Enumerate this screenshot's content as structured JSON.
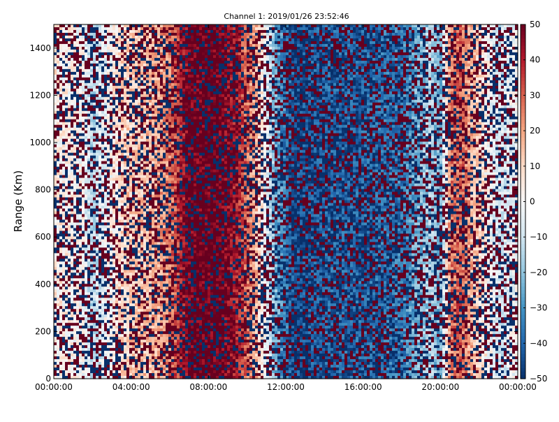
{
  "chart_data": {
    "type": "heatmap",
    "title": "Channel 1: 2019/01/26 23:52:46",
    "xlabel": "",
    "ylabel": "Range (Km)",
    "x_tick_labels": [
      "00:00:00",
      "04:00:00",
      "08:00:00",
      "12:00:00",
      "16:00:00",
      "20:00:00",
      "00:00:00"
    ],
    "x_range_hours": [
      0,
      24
    ],
    "y_ticks": [
      0,
      200,
      400,
      600,
      800,
      1000,
      1200,
      1400
    ],
    "y_range": [
      0,
      1500
    ],
    "colorbar": {
      "ticks": [
        50,
        40,
        30,
        20,
        10,
        0,
        -10,
        -20,
        -30,
        -40,
        -50
      ],
      "range": [
        -50,
        50
      ],
      "colormap": "diverging red-white-blue",
      "colors": {
        "low": "#08306b",
        "mid": "#f7f7f7",
        "high": "#67001f"
      }
    },
    "grid": false,
    "background_value_profile": {
      "x_hours": [
        0,
        1.5,
        2,
        2.5,
        3.5,
        4,
        5,
        6,
        7,
        8.5,
        9.5,
        10.5,
        11.5,
        12.5,
        14,
        16,
        18,
        19.5,
        20,
        20.5,
        21,
        22,
        23,
        24
      ],
      "values": [
        5,
        0,
        -15,
        -5,
        10,
        12,
        15,
        25,
        48,
        50,
        40,
        15,
        -25,
        -45,
        -40,
        -40,
        -35,
        -15,
        -25,
        25,
        30,
        10,
        -10,
        0
      ]
    },
    "noise_fraction": 0.45
  }
}
